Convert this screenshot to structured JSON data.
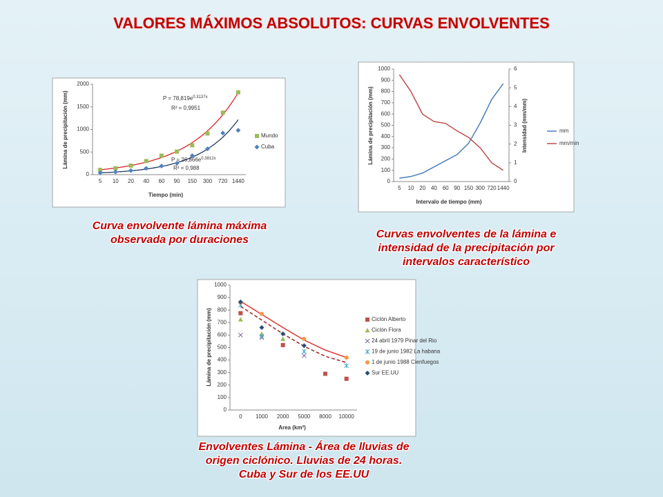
{
  "title": "VALORES MÁXIMOS ABSOLUTOS: CURVAS ENVOLVENTES",
  "captions": [
    [
      "Curva envolvente lámina máxima",
      "observada por duraciones"
    ],
    [
      "Curvas envolventes de la lámina e",
      "intensidad de la precipitación por",
      "intervalos característico"
    ],
    [
      "Envolventes Lámina - Área de lluvias de",
      "origen ciclónico. Lluvias de 24 horas.",
      "Cuba y Sur de los EE.UU"
    ]
  ],
  "chart_data": [
    {
      "type": "scatter",
      "categories": [
        "5",
        "10",
        "20",
        "40",
        "60",
        "90",
        "150",
        "300",
        "720",
        "1440"
      ],
      "xlabel": "Tiempo (min)",
      "ylabel": "Lámina de precipitación (mm)",
      "ylim": [
        0,
        2000
      ],
      "yticks": [
        0,
        500,
        1000,
        1500,
        2000
      ],
      "series": [
        {
          "name": "Mundo",
          "color": "#9bbb59",
          "marker": "square",
          "values": [
            105,
            140,
            200,
            300,
            420,
            510,
            650,
            910,
            1370,
            1820
          ],
          "fit": [
            78.819,
            0.3137
          ],
          "fit_color": "#e02020"
        },
        {
          "name": "Cuba",
          "color": "#4f81bd",
          "marker": "diamond",
          "values": [
            40,
            60,
            90,
            140,
            190,
            250,
            420,
            570,
            920,
            980
          ],
          "fit": [
            26.866,
            0.3812
          ],
          "fit_color": "#1f3864"
        }
      ],
      "annotations": [
        {
          "text": "P = 78,819e",
          "sup": "0.3137x"
        },
        {
          "text": "R² = 0,9951"
        },
        {
          "text": "P = 26,866e",
          "sup": "0.3812x"
        },
        {
          "text": "R² = 0,988"
        }
      ]
    },
    {
      "type": "line",
      "categories": [
        "5",
        "10",
        "20",
        "40",
        "60",
        "90",
        "150",
        "300",
        "720",
        "1440"
      ],
      "xlabel": "Intervalo de tiempo (mm)",
      "ylabel": "Lámina de precipitación (mm)",
      "y2label": "Intensidad (mm/mm)",
      "ylim": [
        0,
        1000
      ],
      "yticks": [
        0,
        100,
        200,
        300,
        400,
        500,
        600,
        700,
        800,
        900,
        1000
      ],
      "y2lim": [
        0,
        6
      ],
      "y2ticks": [
        0,
        1,
        2,
        3,
        4,
        5,
        6
      ],
      "series": [
        {
          "name": "mm",
          "color": "#4a7ebb",
          "values": [
            30,
            45,
            75,
            130,
            185,
            240,
            340,
            520,
            730,
            870
          ]
        },
        {
          "name": "mm/min",
          "color": "#be4b48",
          "axis": "y2",
          "values": [
            5.7,
            4.8,
            3.6,
            3.2,
            3.1,
            2.7,
            2.35,
            1.8,
            1.0,
            0.6
          ]
        }
      ]
    },
    {
      "type": "scatter",
      "categories": [
        "0",
        "1000",
        "2000",
        "5000",
        "8000",
        "10000"
      ],
      "xlabel": "Area (km²)",
      "ylabel": "Lámina de precipitación (mm)",
      "ylim": [
        0,
        1000
      ],
      "yticks": [
        0,
        100,
        200,
        300,
        400,
        500,
        600,
        700,
        800,
        900,
        1000
      ],
      "series": [
        {
          "name": "Ciclón Alberto",
          "color": "#c0504d",
          "marker": "square",
          "values": [
            775,
            null,
            520,
            null,
            290,
            250
          ]
        },
        {
          "name": "Ciclón Flora",
          "color": "#9bbb59",
          "marker": "triangle",
          "values": [
            725,
            610,
            570,
            null,
            null,
            null
          ]
        },
        {
          "name": "24 abril 1979 Pinar del Rio",
          "color": "#8064a2",
          "marker": "cross",
          "values": [
            600,
            580,
            null,
            435,
            null,
            null
          ]
        },
        {
          "name": "19 de junio 1982 La habana",
          "color": "#4bacc6",
          "marker": "star",
          "values": [
            840,
            590,
            null,
            470,
            null,
            355
          ]
        },
        {
          "name": "1 de junio 1988 Cienfuegos",
          "color": "#f79646",
          "marker": "circle",
          "values": [
            860,
            770,
            null,
            570,
            null,
            420
          ]
        },
        {
          "name": "Sur EE.UU",
          "color": "#2c4d75",
          "marker": "diamond",
          "values": [
            865,
            660,
            610,
            515,
            null,
            null
          ]
        }
      ],
      "envelopes": [
        {
          "color": "#e03030",
          "dash": false,
          "values": [
            870,
            765,
            660,
            560,
            480,
            420
          ]
        },
        {
          "color": "#a02020",
          "dash": true,
          "values": [
            830,
            720,
            610,
            510,
            430,
            380
          ]
        }
      ]
    }
  ]
}
